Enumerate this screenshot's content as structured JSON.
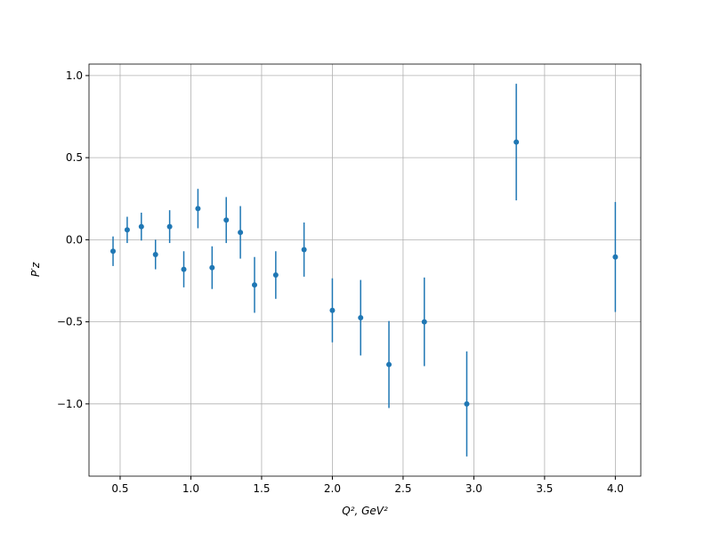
{
  "chart_data": {
    "type": "errorbar",
    "x": [
      0.45,
      0.55,
      0.65,
      0.75,
      0.85,
      0.95,
      1.05,
      1.15,
      1.25,
      1.35,
      1.45,
      1.6,
      1.8,
      2.0,
      2.2,
      2.4,
      2.65,
      2.95,
      3.3,
      4.0
    ],
    "values": [
      -0.07,
      0.06,
      0.08,
      -0.09,
      0.08,
      -0.18,
      0.19,
      -0.17,
      0.12,
      0.045,
      -0.275,
      -0.215,
      -0.06,
      -0.43,
      -0.475,
      -0.76,
      -0.5,
      -1.0,
      0.595,
      -0.105
    ],
    "errors": [
      0.09,
      0.08,
      0.085,
      0.09,
      0.1,
      0.11,
      0.12,
      0.13,
      0.14,
      0.16,
      0.17,
      0.145,
      0.165,
      0.195,
      0.23,
      0.265,
      0.27,
      0.32,
      0.355,
      0.335
    ],
    "color": "#1f77b4",
    "xlabel": "Q², GeV²",
    "ylabel": "P′z",
    "xlim": [
      0.28,
      4.18
    ],
    "ylim": [
      -1.44,
      1.07
    ],
    "xticks": [
      0.5,
      {
        "value": 1.0,
        "label": "1.0"
      },
      1.5,
      {
        "value": 2.0,
        "label": "2.0"
      },
      2.5,
      {
        "value": 3.0,
        "label": "3.0"
      },
      3.5,
      {
        "value": 4.0,
        "label": "4.0"
      }
    ],
    "yticks": [
      {
        "value": -1.0,
        "label": "−1.0"
      },
      {
        "value": -0.5,
        "label": "−0.5"
      },
      {
        "value": 0.0,
        "label": "0.0"
      },
      {
        "value": 0.5,
        "label": "0.5"
      },
      {
        "value": 1.0,
        "label": "1.0"
      }
    ],
    "grid": true
  }
}
